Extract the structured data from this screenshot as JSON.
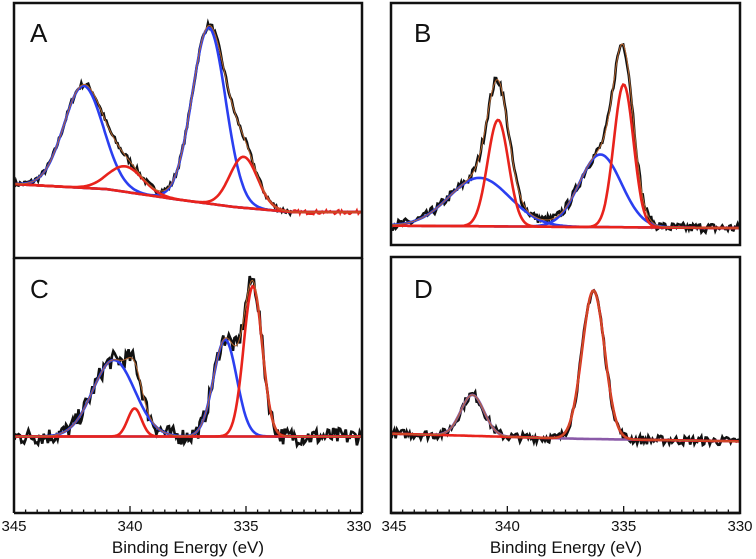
{
  "chart_data": [
    {
      "panel": "A",
      "type": "line",
      "xlim": [
        345,
        330
      ],
      "background": [
        [
          345,
          0.29
        ],
        [
          341,
          0.27
        ],
        [
          338,
          0.23
        ],
        [
          335.5,
          0.2
        ],
        [
          333,
          0.18
        ],
        [
          330,
          0.18
        ]
      ],
      "components": [
        {
          "name": "blue-1",
          "color": "#2b3ff0",
          "center": 342.0,
          "amp": 0.4,
          "sigma": 0.85
        },
        {
          "name": "blue-2",
          "color": "#2b3ff0",
          "center": 336.6,
          "amp": 0.69,
          "sigma": 0.72
        },
        {
          "name": "red-1",
          "color": "#e8231c",
          "center": 340.2,
          "amp": 0.1,
          "sigma": 0.75
        },
        {
          "name": "red-2",
          "color": "#e8231c",
          "center": 335.1,
          "amp": 0.2,
          "sigma": 0.6
        }
      ],
      "noise": 0.012,
      "data_end": 333.0
    },
    {
      "panel": "B",
      "type": "line",
      "xlim": [
        345,
        330
      ],
      "background": [
        [
          345,
          0.08
        ],
        [
          330,
          0.07
        ]
      ],
      "components": [
        {
          "name": "blue-1",
          "color": "#2b3ff0",
          "center": 341.2,
          "amp": 0.2,
          "sigma": 1.3
        },
        {
          "name": "blue-2",
          "color": "#2b3ff0",
          "center": 336.0,
          "amp": 0.3,
          "sigma": 0.9
        },
        {
          "name": "red-1",
          "color": "#e8231c",
          "center": 340.4,
          "amp": 0.44,
          "sigma": 0.45
        },
        {
          "name": "red-2",
          "color": "#e8231c",
          "center": 335.0,
          "amp": 0.59,
          "sigma": 0.42
        }
      ],
      "noise": 0.02
    },
    {
      "panel": "C",
      "type": "line",
      "xlim": [
        345,
        330
      ],
      "background": [
        [
          345,
          0.3
        ],
        [
          330,
          0.3
        ]
      ],
      "components": [
        {
          "name": "blue-1",
          "color": "#2b3ff0",
          "center": 340.7,
          "amp": 0.3,
          "sigma": 0.9
        },
        {
          "name": "blue-2",
          "color": "#2b3ff0",
          "center": 335.9,
          "amp": 0.38,
          "sigma": 0.5
        },
        {
          "name": "red-1",
          "color": "#e8231c",
          "center": 339.8,
          "amp": 0.11,
          "sigma": 0.3
        },
        {
          "name": "red-2",
          "color": "#e8231c",
          "center": 334.7,
          "amp": 0.59,
          "sigma": 0.4
        }
      ],
      "noise": 0.035
    },
    {
      "panel": "D",
      "type": "line",
      "xlim": [
        345,
        330
      ],
      "background": [
        [
          345,
          0.31
        ],
        [
          337,
          0.29
        ],
        [
          330,
          0.28
        ]
      ],
      "components": [
        {
          "name": "purple-1",
          "color": "#8a5aa8",
          "center": 341.5,
          "amp": 0.16,
          "sigma": 0.5
        },
        {
          "name": "red-1",
          "color": "#e8231c",
          "center": 336.3,
          "amp": 0.58,
          "sigma": 0.48
        }
      ],
      "noise": 0.018
    }
  ],
  "labels": {
    "A": "A",
    "B": "B",
    "C": "C",
    "D": "D"
  },
  "x_ticks": [
    "345",
    "340",
    "335",
    "330"
  ],
  "xlabel": "Binding Energy (eV)",
  "colors": {
    "data": "#111111",
    "envelope": "#b5652e",
    "baseline_end": "#8a5aa8",
    "baseline_mid": "#4a7aa8"
  }
}
